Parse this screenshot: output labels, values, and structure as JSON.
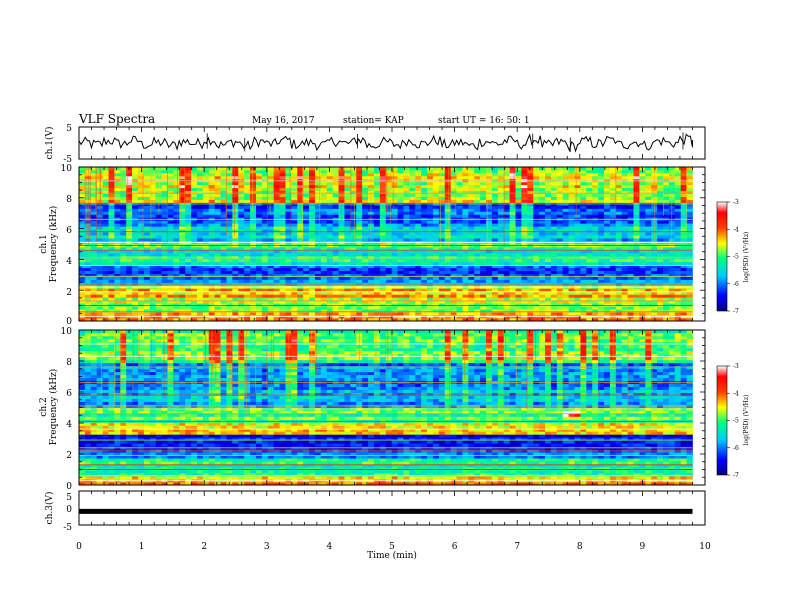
{
  "header": {
    "title": "VLF Spectra",
    "date": "May 16, 2017",
    "station": "station= KAP",
    "start": "start  UT =   16: 50: 1"
  },
  "chart_data": [
    {
      "type": "line",
      "name": "ch1-waveform",
      "ylabel": "ch.1(V)",
      "ylim": [
        -5,
        5
      ],
      "y_ticks": [
        "5",
        "-5"
      ],
      "xlim": [
        0,
        10
      ],
      "x": [
        0.0,
        0.2,
        0.4,
        0.6,
        0.8,
        1.0,
        1.2,
        1.4,
        1.6,
        1.8,
        2.0,
        2.2,
        2.4,
        2.6,
        2.8,
        3.0,
        3.2,
        3.4,
        3.6,
        3.8,
        4.0,
        4.2,
        4.4,
        4.6,
        4.8,
        5.0,
        5.2,
        5.4,
        5.6,
        5.8,
        6.0,
        6.2,
        6.4,
        6.6,
        6.8,
        7.0,
        7.2,
        7.4,
        7.6,
        7.8,
        8.0,
        8.2,
        8.4,
        8.6,
        8.8,
        9.0,
        9.2,
        9.4,
        9.6,
        9.8
      ],
      "y": [
        0.5,
        -1.2,
        1.8,
        -0.6,
        2.2,
        -1.5,
        0.4,
        -2.0,
        1.1,
        -0.3,
        3.0,
        -1.8,
        0.9,
        -2.6,
        1.4,
        -0.9,
        2.5,
        -1.1,
        0.2,
        -1.7,
        1.6,
        -0.4,
        2.8,
        -2.2,
        0.7,
        -1.3,
        1.9,
        -0.8,
        2.3,
        -1.6,
        0.3,
        -2.4,
        1.2,
        -0.5,
        2.0,
        -1.0,
        2.9,
        -1.9,
        0.6,
        -2.8,
        1.5,
        -0.7,
        2.4,
        -1.4,
        0.8,
        -2.1,
        1.7,
        -0.2,
        3.3,
        -1.2
      ]
    },
    {
      "type": "heatmap",
      "name": "ch1-spectrogram",
      "ylabel": "ch.1\nFrequency  (kHz)",
      "ylim": [
        0,
        10
      ],
      "y_ticks": [
        "0",
        "2",
        "4",
        "6",
        "8",
        "10"
      ],
      "xlim": [
        0,
        9.8
      ],
      "colorbar": {
        "label": "log(PSD) (V²/Hz)",
        "range": [
          -7,
          -3
        ],
        "ticks": [
          "-3",
          "-4",
          "-5",
          "-6",
          "-7"
        ],
        "colors": [
          "#000080",
          "#0000ff",
          "#00c8ff",
          "#00ff80",
          "#ffff00",
          "#ff4000",
          "#ff0000",
          "#ffffff"
        ]
      },
      "bands_khz": [
        {
          "from": 0.0,
          "to": 0.5,
          "level": -4.2
        },
        {
          "from": 0.5,
          "to": 1.6,
          "level": -4.8
        },
        {
          "from": 1.6,
          "to": 2.3,
          "level": -4.4
        },
        {
          "from": 2.3,
          "to": 2.6,
          "level": -5.6
        },
        {
          "from": 2.6,
          "to": 3.7,
          "level": -6.1
        },
        {
          "from": 3.7,
          "to": 4.7,
          "level": -5.3
        },
        {
          "from": 4.7,
          "to": 5.2,
          "level": -5.0
        },
        {
          "from": 5.2,
          "to": 6.4,
          "level": -5.7
        },
        {
          "from": 6.4,
          "to": 7.7,
          "level": -6.2
        },
        {
          "from": 7.7,
          "to": 10.0,
          "level": -4.7
        }
      ]
    },
    {
      "type": "heatmap",
      "name": "ch2-spectrogram",
      "ylabel": "ch.2\nFrequency  (kHz)",
      "ylim": [
        0,
        10
      ],
      "y_ticks": [
        "0",
        "2",
        "4",
        "6",
        "8",
        "10"
      ],
      "xlim": [
        0,
        9.8
      ],
      "colorbar": {
        "label": "log(PSD) (V²/Hz)",
        "range": [
          -7,
          -3
        ],
        "ticks": [
          "-3",
          "-4",
          "-5",
          "-6",
          "-7"
        ],
        "colors": [
          "#000080",
          "#0000ff",
          "#00c8ff",
          "#00ff80",
          "#ffff00",
          "#ff4000",
          "#ff0000",
          "#ffffff"
        ]
      },
      "bands_khz": [
        {
          "from": 0.0,
          "to": 0.5,
          "level": -4.3
        },
        {
          "from": 0.5,
          "to": 1.8,
          "level": -5.2
        },
        {
          "from": 1.8,
          "to": 2.4,
          "level": -5.9
        },
        {
          "from": 2.4,
          "to": 3.2,
          "level": -6.4
        },
        {
          "from": 3.2,
          "to": 4.0,
          "level": -4.3
        },
        {
          "from": 4.0,
          "to": 5.0,
          "level": -5.0
        },
        {
          "from": 5.0,
          "to": 6.2,
          "level": -5.8
        },
        {
          "from": 6.2,
          "to": 7.8,
          "level": -6.0
        },
        {
          "from": 7.8,
          "to": 10.0,
          "level": -5.0
        }
      ]
    },
    {
      "type": "line",
      "name": "ch3-waveform",
      "ylabel": "ch.3(V)",
      "ylim": [
        -5,
        5
      ],
      "y_ticks": [
        "5",
        "0",
        "-5"
      ],
      "xlim": [
        0,
        10
      ],
      "x": [
        0,
        9.8
      ],
      "y": [
        -1,
        -1
      ]
    }
  ],
  "x_axis": {
    "label": "Time  (min)",
    "range": [
      0,
      10
    ],
    "ticks": [
      "0",
      "1",
      "2",
      "3",
      "4",
      "5",
      "6",
      "7",
      "8",
      "9",
      "10"
    ]
  }
}
